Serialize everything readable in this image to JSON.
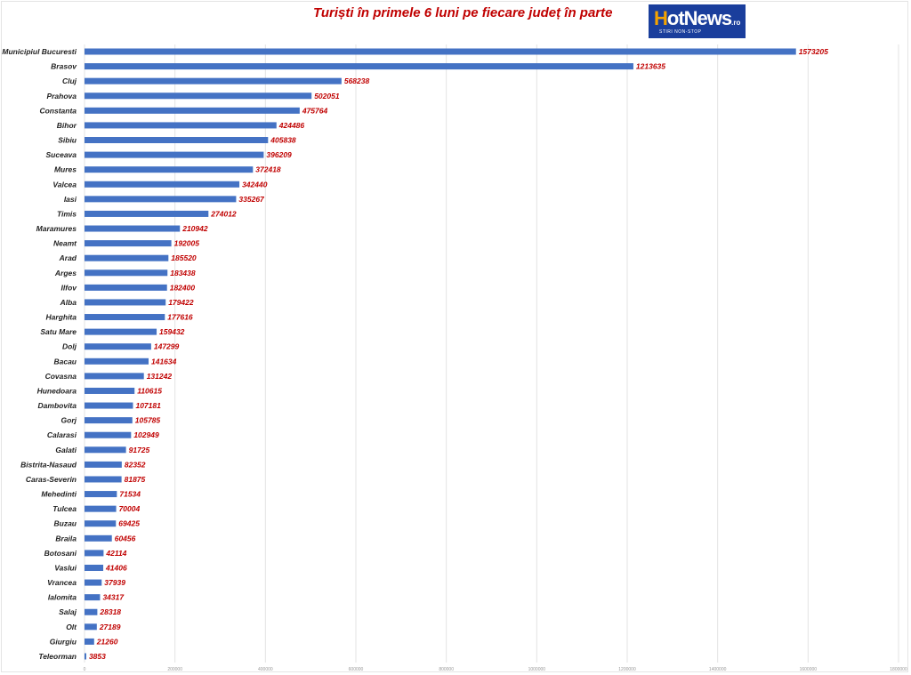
{
  "chart_data": {
    "type": "bar",
    "orientation": "horizontal",
    "title": "Turiști în primele 6 luni pe fiecare județ în parte",
    "xlabel": "",
    "ylabel": "",
    "xlim": [
      0,
      1800000
    ],
    "x_ticks": [
      "0",
      "200000",
      "400000",
      "600000",
      "800000",
      "1000000",
      "1200000",
      "1400000",
      "1600000",
      "1800000"
    ],
    "grid": "vertical",
    "legend": "none",
    "bar_color": "#4472c4",
    "label_color": "#c00000",
    "categories": [
      "Municipiul Bucuresti",
      "Brasov",
      "Cluj",
      "Prahova",
      "Constanta",
      "Bihor",
      "Sibiu",
      "Suceava",
      "Mures",
      "Valcea",
      "Iasi",
      "Timis",
      "Maramures",
      "Neamt",
      "Arad",
      "Arges",
      "Ilfov",
      "Alba",
      "Harghita",
      "Satu Mare",
      "Dolj",
      "Bacau",
      "Covasna",
      "Hunedoara",
      "Dambovita",
      "Gorj",
      "Calarasi",
      "Galati",
      "Bistrita-Nasaud",
      "Caras-Severin",
      "Mehedinti",
      "Tulcea",
      "Buzau",
      "Braila",
      "Botosani",
      "Vaslui",
      "Vrancea",
      "Ialomita",
      "Salaj",
      "Olt",
      "Giurgiu",
      "Teleorman"
    ],
    "values": [
      1573205,
      1213635,
      568238,
      502051,
      475764,
      424486,
      405838,
      396209,
      372418,
      342440,
      335267,
      274012,
      210942,
      192005,
      185520,
      183438,
      182400,
      179422,
      177616,
      159432,
      147299,
      141634,
      131242,
      110615,
      107181,
      105785,
      102949,
      91725,
      82352,
      81875,
      71534,
      70004,
      69425,
      60456,
      42114,
      41406,
      37939,
      34317,
      28318,
      27189,
      21260,
      3853
    ]
  },
  "logo": {
    "brand_h": "H",
    "brand_rest": "otNews",
    "tld": ".ro",
    "tagline": "STIRI NON-STOP"
  }
}
